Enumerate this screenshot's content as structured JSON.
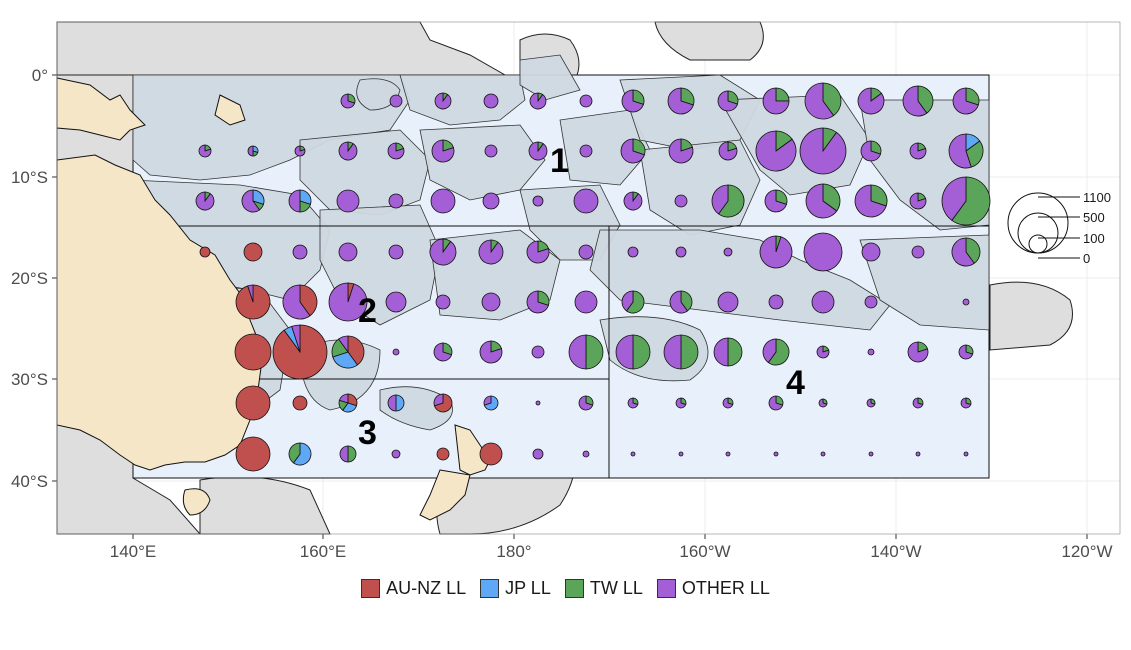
{
  "map": {
    "x_ticks": [
      "140°E",
      "160°E",
      "180°",
      "160°W",
      "140°W",
      "120°W"
    ],
    "y_ticks": [
      "0°",
      "10°S",
      "20°S",
      "30°S",
      "40°S"
    ],
    "regions": [
      "1",
      "2",
      "3",
      "4"
    ],
    "size_legend": [
      "1100",
      "500",
      "100",
      "0"
    ]
  },
  "legend": {
    "items": [
      {
        "label": "AU-NZ LL",
        "color": "#c0504d"
      },
      {
        "label": "JP LL",
        "color": "#5fa8f5"
      },
      {
        "label": "TW LL",
        "color": "#5aa55a"
      },
      {
        "label": "OTHER LL",
        "color": "#a45fd6"
      }
    ]
  },
  "colors": {
    "land": "#f5e6c8",
    "eez": "#cfd8e0",
    "eez_outer": "#dedede",
    "study_area": "#e8f1fb",
    "grid": "#ececec"
  }
}
